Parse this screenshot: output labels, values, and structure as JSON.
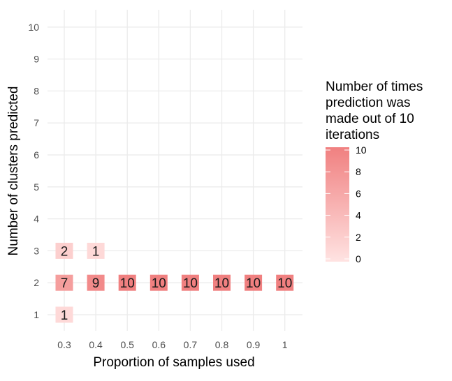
{
  "chart_data": {
    "type": "heatmap",
    "xlabel": "Proportion of samples used",
    "ylabel": "Number of clusters predicted",
    "x_categories": [
      "0.3",
      "0.4",
      "0.5",
      "0.6",
      "0.7",
      "0.8",
      "0.9",
      "1"
    ],
    "y_categories": [
      "1",
      "2",
      "3",
      "4",
      "5",
      "6",
      "7",
      "8",
      "9",
      "10"
    ],
    "cells": [
      {
        "x": "0.3",
        "y": "1",
        "value": 1
      },
      {
        "x": "0.3",
        "y": "2",
        "value": 7
      },
      {
        "x": "0.3",
        "y": "3",
        "value": 2
      },
      {
        "x": "0.4",
        "y": "2",
        "value": 9
      },
      {
        "x": "0.4",
        "y": "3",
        "value": 1
      },
      {
        "x": "0.5",
        "y": "2",
        "value": 10
      },
      {
        "x": "0.6",
        "y": "2",
        "value": 10
      },
      {
        "x": "0.7",
        "y": "2",
        "value": 10
      },
      {
        "x": "0.8",
        "y": "2",
        "value": 10
      },
      {
        "x": "0.9",
        "y": "2",
        "value": 10
      },
      {
        "x": "1",
        "y": "2",
        "value": 10
      }
    ],
    "legend": {
      "title_lines": [
        "Number of times",
        "prediction was",
        "made out of 10",
        "iterations"
      ],
      "ticks": [
        0,
        2,
        4,
        6,
        8,
        10
      ],
      "range": [
        0,
        10
      ],
      "low_color": "#ffe3e2",
      "high_color": "#f08080",
      "placement": "right"
    },
    "grid": true
  }
}
